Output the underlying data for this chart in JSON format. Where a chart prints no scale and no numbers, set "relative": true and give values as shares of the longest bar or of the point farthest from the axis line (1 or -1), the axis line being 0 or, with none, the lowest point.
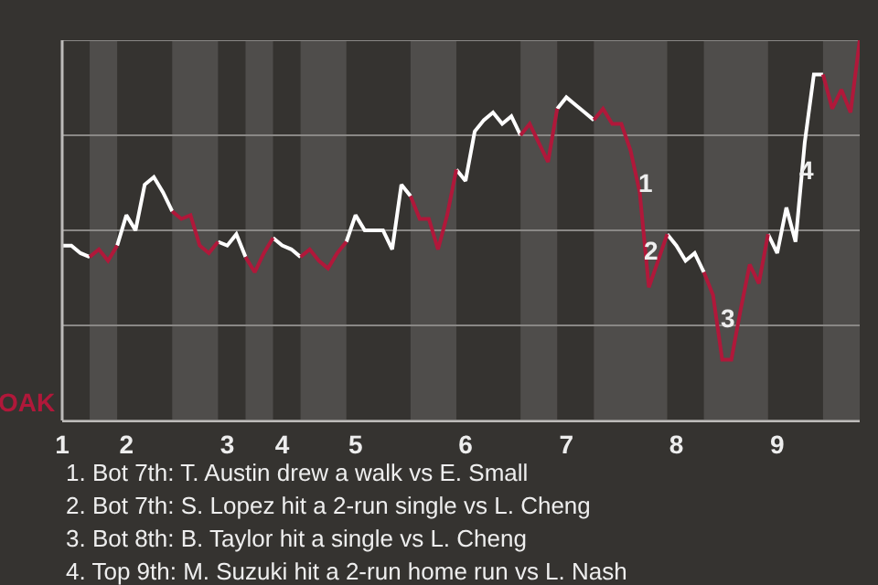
{
  "chart_data": {
    "type": "line",
    "relative": true,
    "ylabel": "OAK",
    "categories": [
      "1",
      null,
      null,
      null,
      null,
      null,
      null,
      "2",
      null,
      null,
      null,
      null,
      null,
      null,
      null,
      null,
      null,
      null,
      "3",
      null,
      null,
      null,
      null,
      null,
      "4",
      null,
      null,
      null,
      null,
      null,
      null,
      null,
      "5",
      null,
      null,
      null,
      null,
      null,
      null,
      null,
      null,
      null,
      null,
      null,
      "6",
      null,
      null,
      null,
      null,
      null,
      null,
      null,
      null,
      null,
      null,
      "7",
      null,
      null,
      null,
      null,
      null,
      null,
      null,
      null,
      null,
      null,
      null,
      "8",
      null,
      null,
      null,
      null,
      null,
      null,
      null,
      null,
      null,
      null,
      "9",
      null,
      null,
      null,
      null,
      null,
      null,
      null,
      null,
      null
    ],
    "series": [
      {
        "color": "#ffffff",
        "values": [
          0.46,
          0.46,
          0.44,
          0.43,
          null,
          null,
          0.46,
          0.54,
          0.5,
          0.62,
          0.64,
          0.6,
          0.55,
          null,
          null,
          null,
          null,
          0.47,
          0.46,
          0.49,
          0.43,
          null,
          null,
          0.48,
          0.46,
          0.45,
          0.43,
          null,
          null,
          null,
          null,
          0.47,
          0.54,
          0.5,
          0.5,
          0.5,
          0.45,
          0.62,
          0.59,
          null,
          null,
          null,
          null,
          0.66,
          0.63,
          0.76,
          0.79,
          0.81,
          0.78,
          0.8,
          0.75,
          null,
          null,
          null,
          0.82,
          0.85,
          0.83,
          0.81,
          0.79,
          null,
          null,
          null,
          null,
          null,
          null,
          null,
          0.49,
          0.46,
          0.42,
          0.44,
          0.39,
          null,
          null,
          null,
          null,
          null,
          null,
          0.49,
          0.44,
          0.56,
          0.47,
          0.73,
          0.91,
          0.91,
          null,
          null,
          null,
          null
        ]
      },
      {
        "color": "#b0183a",
        "values": [
          null,
          null,
          null,
          0.43,
          0.45,
          0.42,
          0.46,
          null,
          null,
          null,
          null,
          null,
          0.55,
          0.53,
          0.54,
          0.46,
          0.44,
          0.47,
          null,
          null,
          0.43,
          0.39,
          0.44,
          0.48,
          null,
          null,
          0.43,
          0.45,
          0.42,
          0.4,
          0.44,
          0.47,
          null,
          null,
          null,
          null,
          null,
          null,
          0.59,
          0.53,
          0.53,
          0.45,
          0.54,
          0.66,
          null,
          null,
          null,
          null,
          null,
          null,
          0.75,
          0.78,
          0.73,
          0.68,
          0.82,
          null,
          null,
          null,
          0.79,
          0.82,
          0.78,
          0.78,
          0.71,
          0.6,
          0.35,
          0.42,
          0.49,
          null,
          null,
          null,
          0.39,
          0.33,
          0.16,
          0.16,
          0.29,
          0.41,
          0.36,
          0.49,
          null,
          null,
          null,
          null,
          null,
          0.91,
          0.82,
          0.87,
          0.81,
          1.0
        ]
      }
    ],
    "grid": "y",
    "annotations": [
      "1",
      "2",
      "3",
      "4",
      "1. Bot 7th: T. Austin drew a walk vs E. Small",
      "2. Bot 7th: S. Lopez hit a 2-run single vs L. Cheng",
      "3. Bot 8th: B. Taylor hit a single vs L. Cheng",
      "4. Top 9th: M. Suzuki hit a 2-run home run vs L. Nash"
    ]
  }
}
